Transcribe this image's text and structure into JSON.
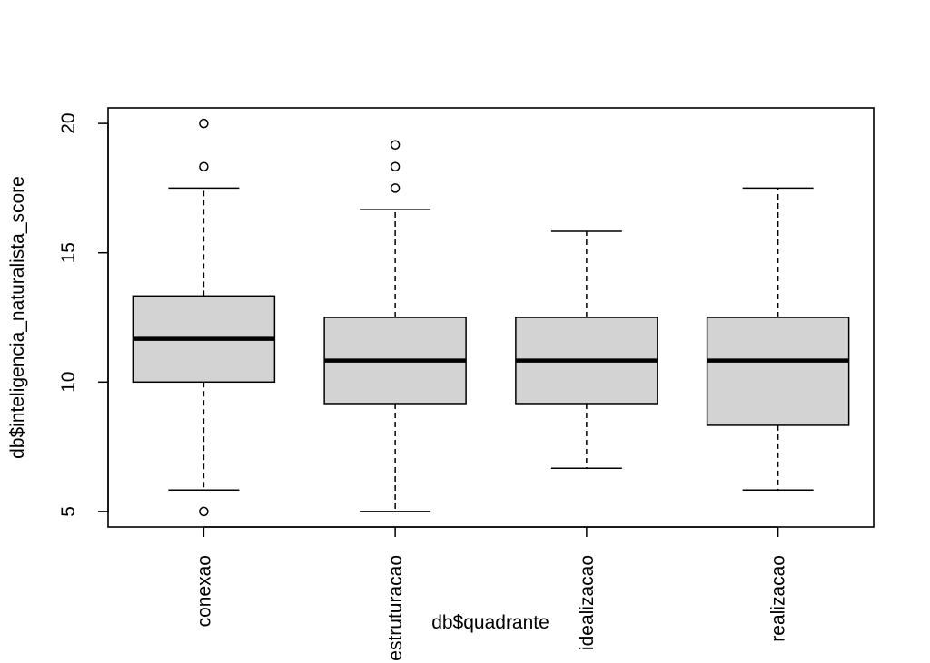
{
  "chart_data": {
    "type": "boxplot",
    "title": "",
    "xlabel": "db$quadrante",
    "ylabel": "db$inteligencia_naturalista_score",
    "ylim": [
      4.4,
      20.6
    ],
    "yticks": [
      "5",
      "10",
      "15",
      "20"
    ],
    "ytick_values": [
      5,
      10,
      15,
      20
    ],
    "grid": false,
    "box_fill": "#d3d3d3",
    "line_color": "#000000",
    "categories": [
      "conexao",
      "estruturacao",
      "idealizacao",
      "realizacao"
    ],
    "boxes": [
      {
        "category": "conexao",
        "whisker_low": 5.83,
        "q1": 10.0,
        "median": 11.67,
        "q3": 13.33,
        "whisker_high": 17.5,
        "outliers": [
          5.0,
          18.33,
          20.0
        ]
      },
      {
        "category": "estruturacao",
        "whisker_low": 5.0,
        "q1": 9.17,
        "median": 10.83,
        "q3": 12.5,
        "whisker_high": 16.67,
        "outliers": [
          17.5,
          18.33,
          19.17
        ]
      },
      {
        "category": "idealizacao",
        "whisker_low": 6.67,
        "q1": 9.17,
        "median": 10.83,
        "q3": 12.5,
        "whisker_high": 15.83,
        "outliers": []
      },
      {
        "category": "realizacao",
        "whisker_low": 5.83,
        "q1": 8.33,
        "median": 10.83,
        "q3": 12.5,
        "whisker_high": 17.5,
        "outliers": []
      }
    ]
  }
}
